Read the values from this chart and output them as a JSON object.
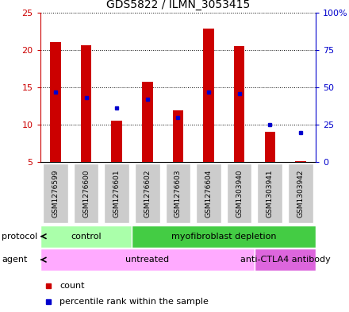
{
  "title": "GDS5822 / ILMN_3053415",
  "samples": [
    "GSM1276599",
    "GSM1276600",
    "GSM1276601",
    "GSM1276602",
    "GSM1276603",
    "GSM1276604",
    "GSM1303940",
    "GSM1303941",
    "GSM1303942"
  ],
  "counts": [
    21.0,
    20.6,
    10.6,
    15.7,
    11.9,
    22.8,
    20.5,
    9.1,
    5.1
  ],
  "percentile_ranks": [
    47,
    43,
    36,
    42,
    30,
    47,
    46,
    25,
    20
  ],
  "ymin": 5,
  "ymax": 25,
  "yticks_left": [
    5,
    10,
    15,
    20,
    25
  ],
  "yticks_right_vals": [
    0,
    25,
    50,
    75,
    100
  ],
  "yticks_right_labels": [
    "0",
    "25",
    "50",
    "75",
    "100%"
  ],
  "bar_color": "#cc0000",
  "dot_color": "#0000cc",
  "bar_width": 0.35,
  "protocol_groups": [
    {
      "label": "control",
      "start": 0,
      "end": 3,
      "color": "#aaffaa"
    },
    {
      "label": "myofibroblast depletion",
      "start": 3,
      "end": 9,
      "color": "#44cc44"
    }
  ],
  "agent_groups": [
    {
      "label": "untreated",
      "start": 0,
      "end": 7,
      "color": "#ffaaff"
    },
    {
      "label": "anti-CTLA4 antibody",
      "start": 7,
      "end": 9,
      "color": "#dd66dd"
    }
  ],
  "bg_color": "#cccccc",
  "plot_bg": "#ffffff",
  "left_tick_color": "#cc0000",
  "right_tick_color": "#0000cc",
  "grid_color": "#000000",
  "grid_style": "dotted",
  "title_fontsize": 10,
  "tick_fontsize": 8,
  "sample_fontsize": 6.5,
  "label_fontsize": 8,
  "legend_fontsize": 8
}
